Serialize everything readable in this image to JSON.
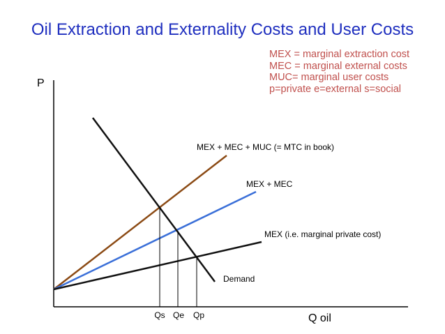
{
  "title": "Oil Extraction and Externality Costs and User Costs",
  "colors": {
    "title": "#1f2fbf",
    "legend": "#c0504d",
    "mtc_line": "#8b4a14",
    "mec_line": "#3a6fd8",
    "mex_line": "#111111",
    "demand_line": "#111111",
    "axis": "#000000"
  },
  "legend": [
    "MEX = marginal extraction cost",
    "MEC = marginal external costs",
    "MUC= marginal user costs",
    "p=private  e=external  s=social"
  ],
  "axes": {
    "y_label": "P",
    "x_label": "Q oil"
  },
  "curves": {
    "mtc": "MEX + MEC + MUC (= MTC in book)",
    "mec": "MEX + MEC",
    "mex": "MEX (i.e. marginal private cost)",
    "demand": "Demand"
  },
  "quantities": {
    "qs": "Qs",
    "qe": "Qe",
    "qp": "Qp"
  }
}
